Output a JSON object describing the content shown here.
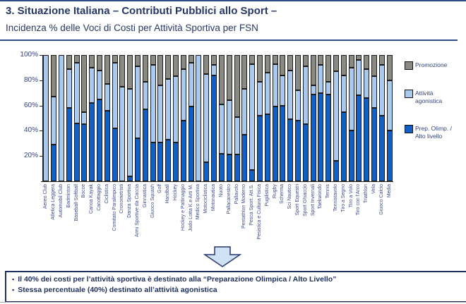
{
  "header": {
    "title": "3. Situazione Italiana – Contributi Pubblici allo Sport –",
    "subtitle": "Incidenza % delle Voci di Costi per Attività Sportiva per FSN"
  },
  "chart_data": {
    "type": "bar",
    "stacked": true,
    "unit": "%",
    "ylim": [
      0,
      100
    ],
    "y_ticks": [
      100,
      80,
      60,
      40,
      20
    ],
    "grid": false,
    "legend_position": "right",
    "categories": [
      "Aereo Club",
      "Atletica Leggera",
      "Automobil Club",
      "Badminton",
      "Baseball-Softball",
      "Bocce",
      "Canoa Kayak",
      "Canottaggio",
      "Ciclistica",
      "Comitato Paralimpico",
      "Cronometristi",
      "Danza Sportiva",
      "Armi Sportive da Caccia",
      "Ginnastica",
      "Giuoco Squash",
      "Golf",
      "Handball",
      "Hockey",
      "Hockey e Pattinaggio",
      "Judo Lotta K.e Arti M.",
      "Medico Sportiva",
      "Motociclistica",
      "Motonautica",
      "Nuoto",
      "Pallacanestro",
      "Pallavolo",
      "Pentathlon Moderno",
      "Pesca Sport. Att.S.",
      "Pesistica e Cultura Fisica",
      "Pugilistica",
      "Rugby",
      "Scherma",
      "Sci Nautico",
      "Sport Equestri",
      "Sport Ghiaccio",
      "Sport Invernali",
      "Taekwondo",
      "Tennis",
      "Tennistavolo",
      "Tiro a Segno",
      "Tiro a Volo",
      "Tiro con l'Arco",
      "Triathlon",
      "Vela",
      "Giuoco Calcio",
      "Media"
    ],
    "series": [
      {
        "name": "Prep. Olimp. / Alto livello",
        "color": "#1160c8",
        "values": [
          0,
          29,
          0,
          58,
          46,
          45,
          62,
          65,
          56,
          42,
          0,
          4,
          34,
          57,
          31,
          31,
          33,
          31,
          48,
          59,
          0,
          15,
          84,
          22,
          21,
          21,
          37,
          9,
          52,
          53,
          59,
          60,
          49,
          48,
          45,
          69,
          70,
          69,
          16,
          55,
          40,
          68,
          66,
          58,
          52,
          40
        ]
      },
      {
        "name": "Attività agonistica",
        "color": "#a9c9ee",
        "values": [
          100,
          38,
          100,
          31,
          48,
          10,
          28,
          23,
          21,
          52,
          75,
          69,
          57,
          22,
          61,
          45,
          48,
          52,
          41,
          35,
          100,
          70,
          8,
          39,
          43,
          30,
          36,
          84,
          27,
          33,
          34,
          24,
          39,
          24,
          46,
          7,
          22,
          10,
          71,
          29,
          50,
          28,
          23,
          25,
          40,
          40
        ]
      },
      {
        "name": "Promozione",
        "color": "#8b8a82",
        "values": [
          0,
          33,
          0,
          11,
          6,
          45,
          10,
          12,
          23,
          6,
          25,
          27,
          9,
          21,
          8,
          24,
          19,
          17,
          11,
          6,
          0,
          15,
          8,
          39,
          36,
          49,
          27,
          7,
          21,
          14,
          7,
          16,
          12,
          28,
          9,
          24,
          8,
          21,
          13,
          16,
          10,
          4,
          11,
          17,
          8,
          20
        ]
      }
    ]
  },
  "legend": {
    "items": [
      {
        "label": "Promozione",
        "color": "#8b8a82"
      },
      {
        "label": "Attività agonistica",
        "color": "#a9c9ee"
      },
      {
        "label": "Prep. Olimp. / Alto livello",
        "color": "#1160c8"
      }
    ]
  },
  "callout": {
    "bullets": [
      "Il 40% dei costi per l’attività sportiva è destinato alla “Preparazione Olimpica / Alto Livello”",
      "Stessa percentuale (40%) destinato all’attività agonistica"
    ]
  }
}
